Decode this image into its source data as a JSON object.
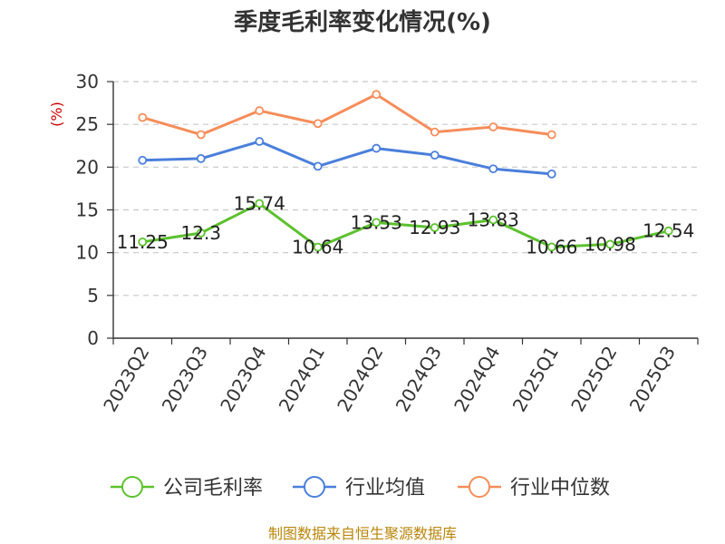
{
  "chart_data": {
    "type": "line",
    "title": "季度毛利率变化情况(%)",
    "ylabel": "(%)",
    "xlabel": "",
    "ylim": [
      0,
      30
    ],
    "yticks": [
      0,
      5,
      10,
      15,
      20,
      25,
      30
    ],
    "grid": true,
    "legend_position": "bottom",
    "categories": [
      "2023Q2",
      "2023Q3",
      "2023Q4",
      "2024Q1",
      "2024Q2",
      "2024Q3",
      "2024Q4",
      "2025Q1",
      "2025Q2",
      "2025Q3"
    ],
    "series": [
      {
        "name": "公司毛利率",
        "color": "#5cc12e",
        "values": [
          11.25,
          12.3,
          15.74,
          10.64,
          13.53,
          12.93,
          13.83,
          10.66,
          10.98,
          12.54
        ],
        "labels": [
          "11.25",
          "12.3",
          "15.74",
          "10.64",
          "13.53",
          "12.93",
          "13.83",
          "10.66",
          "10.98",
          "12.54"
        ]
      },
      {
        "name": "行业均值",
        "color": "#4a7fdb",
        "values": [
          20.8,
          21.0,
          23.0,
          20.1,
          22.2,
          21.4,
          19.8,
          19.2,
          null,
          null
        ]
      },
      {
        "name": "行业中位数",
        "color": "#f58d5a",
        "values": [
          25.8,
          23.8,
          26.6,
          25.1,
          28.5,
          24.1,
          24.7,
          23.8,
          null,
          null
        ]
      }
    ],
    "source": "制图数据来自恒生聚源数据库"
  }
}
